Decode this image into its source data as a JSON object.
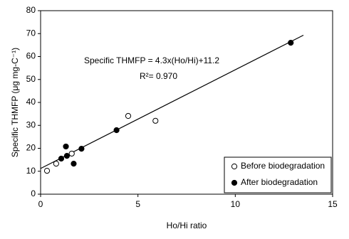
{
  "chart_data": {
    "type": "scatter",
    "x_label": "Ho/Hi ratio",
    "y_label": "Specific THMFP (μg mg-C⁻¹)",
    "annotations": [
      "Specific THMFP = 4.3x(Ho/Hi)+11.2",
      "R²= 0.970"
    ],
    "xlim": [
      0,
      15
    ],
    "xticks": [
      0,
      5,
      10,
      15
    ],
    "ylim": [
      0,
      80
    ],
    "yticks": [
      0,
      10,
      20,
      30,
      40,
      50,
      60,
      70,
      80
    ],
    "grid": false,
    "legend": "lower right",
    "series": [
      {
        "name": "Before biodegradation",
        "color": "#000000",
        "filled": false,
        "x": [
          0.33,
          0.8,
          1.6,
          4.5,
          5.9
        ],
        "values": [
          10.2,
          13.3,
          17.7,
          34.1,
          32
        ]
      },
      {
        "name": "After biodegradation",
        "color": "#000000",
        "filled": true,
        "x": [
          1.06,
          1.3,
          1.35,
          1.7,
          2.1,
          3.9,
          12.85
        ],
        "values": [
          15.5,
          20.8,
          16.7,
          13.3,
          19.8,
          27.9,
          66
        ]
      }
    ],
    "fit_line": {
      "color": "#000000",
      "x": [
        0,
        13.5
      ],
      "values": [
        11.2,
        69.3
      ]
    }
  }
}
